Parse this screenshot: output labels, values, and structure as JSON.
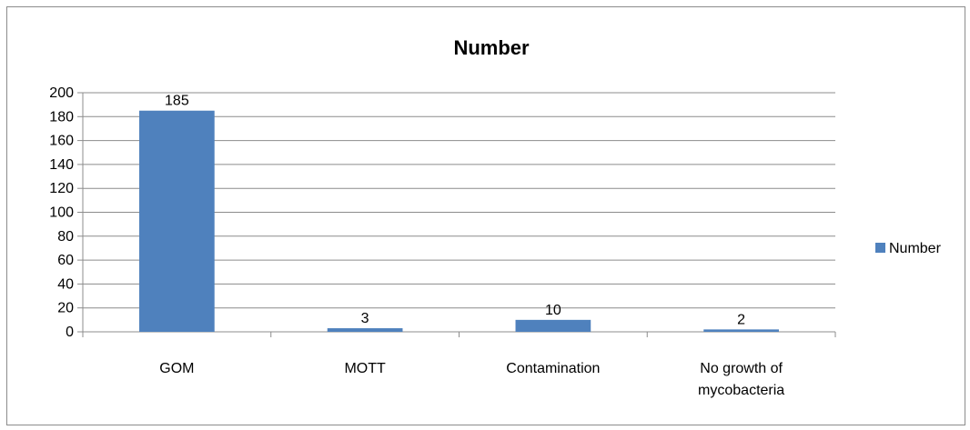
{
  "chart_data": {
    "type": "bar",
    "title": "Number",
    "categories": [
      "GOM",
      "MOTT",
      "Contamination",
      "No growth of mycobacteria"
    ],
    "series": [
      {
        "name": "Number",
        "values": [
          185,
          3,
          10,
          2
        ],
        "color": "#4f81bd"
      }
    ],
    "data_labels": [
      "185",
      "3",
      "10",
      "2"
    ],
    "ylim": [
      0,
      200
    ],
    "y_ticks": [
      0,
      20,
      40,
      60,
      80,
      100,
      120,
      140,
      160,
      180,
      200
    ],
    "xlabel": "",
    "ylabel": "",
    "grid": true,
    "legend": "right"
  }
}
